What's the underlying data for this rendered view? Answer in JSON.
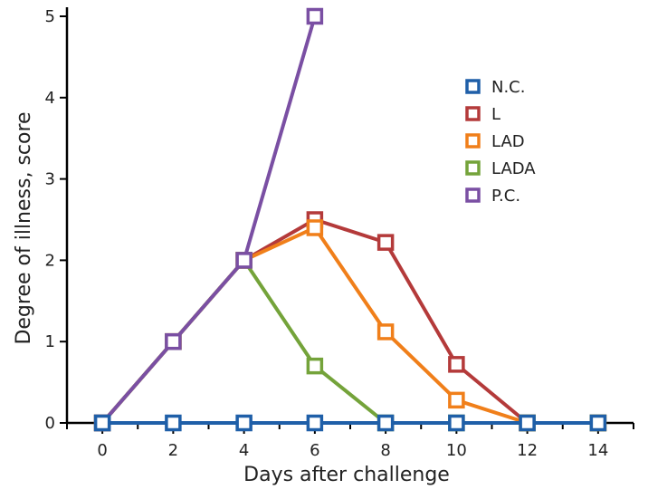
{
  "chart_data": {
    "type": "line",
    "title": "",
    "xlabel": "Days after challenge",
    "ylabel": "Degree of illness, score",
    "xlim": [
      -1,
      15
    ],
    "ylim": [
      0,
      5
    ],
    "xticks": [
      0,
      2,
      4,
      6,
      8,
      10,
      12,
      14
    ],
    "yticks": [
      0,
      1,
      2,
      3,
      4,
      5
    ],
    "grid": false,
    "legend_position": "upper-right",
    "series": [
      {
        "name": "N.C.",
        "color": "#1f5fa8",
        "x": [
          0,
          2,
          4,
          6,
          8,
          10,
          12,
          14
        ],
        "y": [
          0,
          0,
          0,
          0,
          0,
          0,
          0,
          0
        ]
      },
      {
        "name": "L",
        "color": "#b43a3a",
        "x": [
          0,
          2,
          4,
          6,
          8,
          10,
          12,
          14
        ],
        "y": [
          0,
          1,
          2,
          2.5,
          2.22,
          0.72,
          0,
          0
        ]
      },
      {
        "name": "LAD",
        "color": "#f07f1a",
        "x": [
          0,
          2,
          4,
          6,
          8,
          10,
          12,
          14
        ],
        "y": [
          0,
          1,
          2,
          2.4,
          1.12,
          0.28,
          0,
          0
        ]
      },
      {
        "name": "LADA",
        "color": "#74a33a",
        "x": [
          0,
          2,
          4,
          6,
          8,
          10,
          12,
          14
        ],
        "y": [
          0,
          1,
          2,
          0.7,
          0,
          0,
          0,
          0
        ]
      },
      {
        "name": "P.C.",
        "color": "#7a4fa3",
        "x": [
          0,
          2,
          4,
          6
        ],
        "y": [
          0,
          1,
          2,
          5
        ]
      }
    ]
  }
}
